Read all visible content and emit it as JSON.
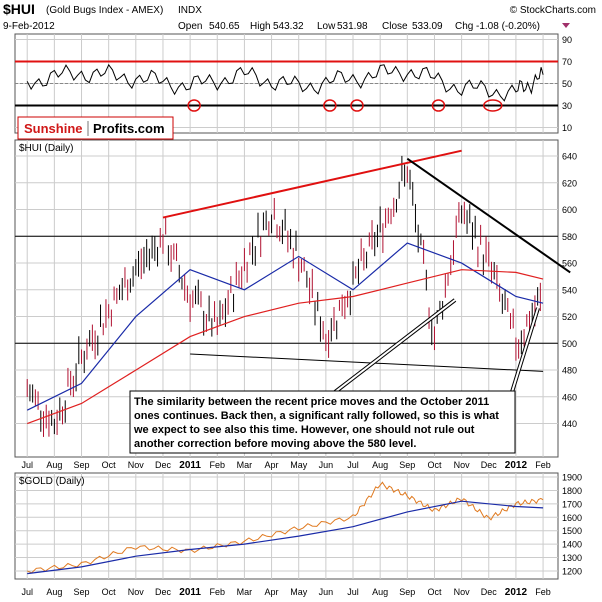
{
  "header": {
    "symbol": "$HUI",
    "name": "(Gold Bugs Index - AMEX)",
    "exchange": "INDX",
    "date": "9-Feb-2012",
    "open_label": "Open",
    "open": "540.65",
    "high_label": "High",
    "high": "543.32",
    "low_label": "Low",
    "low": "531.98",
    "close_label": "Close",
    "close": "533.09",
    "chg_label": "Chg",
    "chg": "-1.08 (-0.20%)",
    "source": "© StockCharts.com"
  },
  "logo": {
    "part1": "Sunshine",
    "part2": "Profits.com"
  },
  "annotation": {
    "lines": [
      "The similarity between the recent price moves and the October 2011",
      "ones continues. Back then, a significant rally followed, so this is what",
      "we expect to see also this time. However, one should not rule out",
      "another correction before moving above the 580 level."
    ]
  },
  "colors": {
    "background": "#ffffff",
    "panel_border": "#555555",
    "grid": "#cccccc",
    "price_up": "#000000",
    "price_down": "#b01030",
    "ma_fast": "#1a2ba8",
    "ma_slow": "#e02020",
    "trend_red": "#e01010",
    "rsi_line": "#000000",
    "rsi_level_red": "#e01010",
    "gold_line": "#e07a20",
    "gold_ma": "#1a2ba8"
  },
  "chart_data": [
    {
      "panel": "rsi",
      "type": "line",
      "ylim": [
        5,
        95
      ],
      "y_ticks": [
        "90",
        "70",
        "50",
        "30",
        "10"
      ],
      "levels": [
        70,
        50,
        30
      ],
      "x": [
        "2010-07",
        "2010-09",
        "2010-11",
        "2011-01",
        "2011-03",
        "2011-05",
        "2011-07",
        "2011-09",
        "2011-11",
        "2012-01",
        "2012-02"
      ],
      "values": [
        52,
        60,
        55,
        48,
        58,
        47,
        55,
        62,
        46,
        42,
        58
      ],
      "circled_lows": [
        "2011-01",
        "2011-06",
        "2011-07",
        "2011-10",
        "2011-12"
      ]
    },
    {
      "panel": "price",
      "title": "$HUI (Daily)",
      "type": "candlestick",
      "ylim": [
        415,
        652
      ],
      "y_ticks": [
        "640",
        "620",
        "600",
        "580",
        "560",
        "540",
        "520",
        "500",
        "480",
        "460",
        "440"
      ],
      "x_ticks": [
        "Jul",
        "Aug",
        "Sep",
        "Oct",
        "Nov",
        "Dec",
        "2011",
        "Feb",
        "Mar",
        "Apr",
        "May",
        "Jun",
        "Jul",
        "Aug",
        "Sep",
        "Oct",
        "Nov",
        "Dec",
        "2012",
        "Feb"
      ],
      "series": [
        {
          "kind": "price",
          "x": [
            "2010-07",
            "2010-08",
            "2010-09",
            "2010-10",
            "2010-11",
            "2010-12",
            "2011-01",
            "2011-02",
            "2011-03",
            "2011-04",
            "2011-05",
            "2011-06",
            "2011-07",
            "2011-08",
            "2011-09",
            "2011-10",
            "2011-11",
            "2011-12",
            "2012-01",
            "2012-02"
          ],
          "values": [
            465,
            440,
            490,
            525,
            555,
            580,
            535,
            510,
            560,
            600,
            565,
            505,
            545,
            585,
            630,
            505,
            600,
            560,
            500,
            535
          ]
        },
        {
          "kind": "ma_fast",
          "x": [
            "2010-07",
            "2010-09",
            "2010-11",
            "2011-01",
            "2011-03",
            "2011-05",
            "2011-07",
            "2011-09",
            "2011-11",
            "2012-01",
            "2012-02"
          ],
          "values": [
            450,
            470,
            520,
            555,
            540,
            565,
            540,
            575,
            560,
            535,
            530
          ]
        },
        {
          "kind": "ma_slow",
          "x": [
            "2010-07",
            "2010-09",
            "2010-11",
            "2011-01",
            "2011-03",
            "2011-05",
            "2011-07",
            "2011-09",
            "2011-11",
            "2012-01",
            "2012-02"
          ],
          "values": [
            440,
            455,
            480,
            505,
            520,
            530,
            535,
            545,
            555,
            553,
            548
          ]
        }
      ],
      "horizontal_lines": [
        580,
        500
      ],
      "trendlines": [
        {
          "from": [
            "2010-12",
            594
          ],
          "to": [
            "2011-11",
            644
          ]
        },
        {
          "from": [
            "2011-09",
            638
          ],
          "to": [
            "2012-03",
            553
          ]
        },
        {
          "from": [
            "2011-01",
            492
          ],
          "to": [
            "2012-02",
            479
          ]
        }
      ]
    },
    {
      "panel": "gold",
      "title": "$GOLD (Daily)",
      "type": "line",
      "ylim": [
        1140,
        1930
      ],
      "y_ticks": [
        "1900",
        "1800",
        "1700",
        "1600",
        "1500",
        "1400",
        "1300",
        "1200"
      ],
      "x_ticks": [
        "Jul",
        "Aug",
        "Sep",
        "Oct",
        "Nov",
        "Dec",
        "2011",
        "Feb",
        "Mar",
        "Apr",
        "May",
        "Jun",
        "Jul",
        "Aug",
        "Sep",
        "Oct",
        "Nov",
        "Dec",
        "2012",
        "Feb"
      ],
      "series": [
        {
          "kind": "gold",
          "x": [
            "2010-07",
            "2010-09",
            "2010-11",
            "2011-01",
            "2011-03",
            "2011-05",
            "2011-07",
            "2011-08",
            "2011-09",
            "2011-10",
            "2011-11",
            "2011-12",
            "2012-01",
            "2012-02"
          ],
          "values": [
            1200,
            1250,
            1380,
            1350,
            1420,
            1520,
            1600,
            1850,
            1760,
            1650,
            1740,
            1590,
            1700,
            1730
          ]
        },
        {
          "kind": "ma",
          "x": [
            "2010-07",
            "2010-09",
            "2010-11",
            "2011-01",
            "2011-03",
            "2011-05",
            "2011-07",
            "2011-09",
            "2011-11",
            "2012-01",
            "2012-02"
          ],
          "values": [
            1180,
            1230,
            1310,
            1360,
            1400,
            1460,
            1530,
            1640,
            1720,
            1680,
            1670
          ]
        }
      ]
    }
  ]
}
